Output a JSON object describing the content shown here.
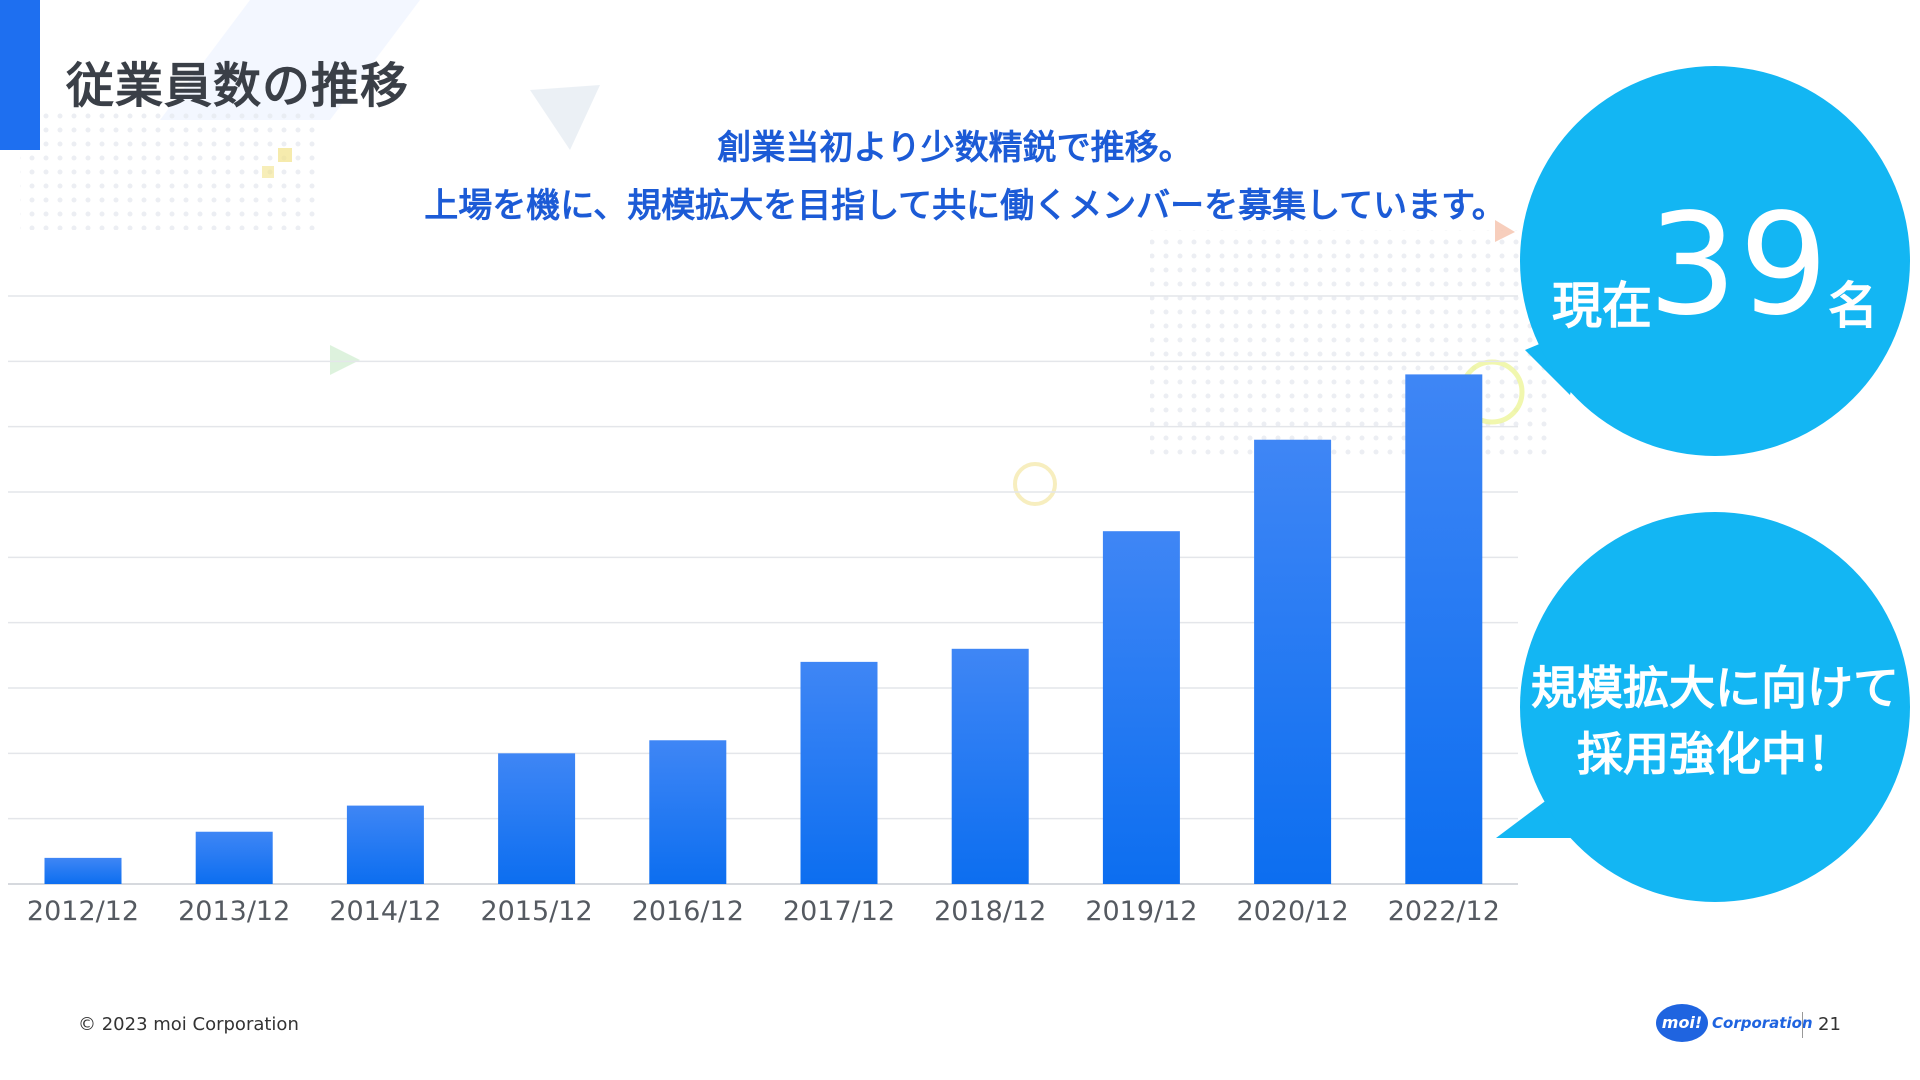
{
  "slide": {
    "title": "従業員数の推移",
    "headline_lines": [
      "創業当初より少数精鋭で推移。",
      "上場を機に、規模拡大を目指して共に働くメンバーを募集しています。"
    ],
    "callout_count": {
      "prefix": "現在",
      "number": "39",
      "suffix": "名"
    },
    "callout_recruit": {
      "lines": [
        "規模拡大に向けて",
        "採用強化中！"
      ]
    },
    "footer": {
      "copyright": "© 2023 moi Corporation",
      "logo_text": "moi!",
      "brand": "Corporation",
      "page_number": "21"
    },
    "colors": {
      "accent": "#1e6ff0",
      "bubble": "#13b6f3",
      "headline": "#1c5bd6"
    }
  },
  "chart_data": {
    "type": "bar",
    "categories": [
      "2012/12",
      "2013/12",
      "2014/12",
      "2015/12",
      "2016/12",
      "2017/12",
      "2018/12",
      "2019/12",
      "2020/12",
      "2022/12"
    ],
    "values": [
      2,
      4,
      6,
      10,
      11,
      17,
      18,
      27,
      34,
      39
    ],
    "ylim": [
      0,
      45
    ],
    "gridlines": 9,
    "grid": true,
    "bar_color_top": "#3f86f5",
    "bar_color_bottom": "#0c6ef0"
  }
}
